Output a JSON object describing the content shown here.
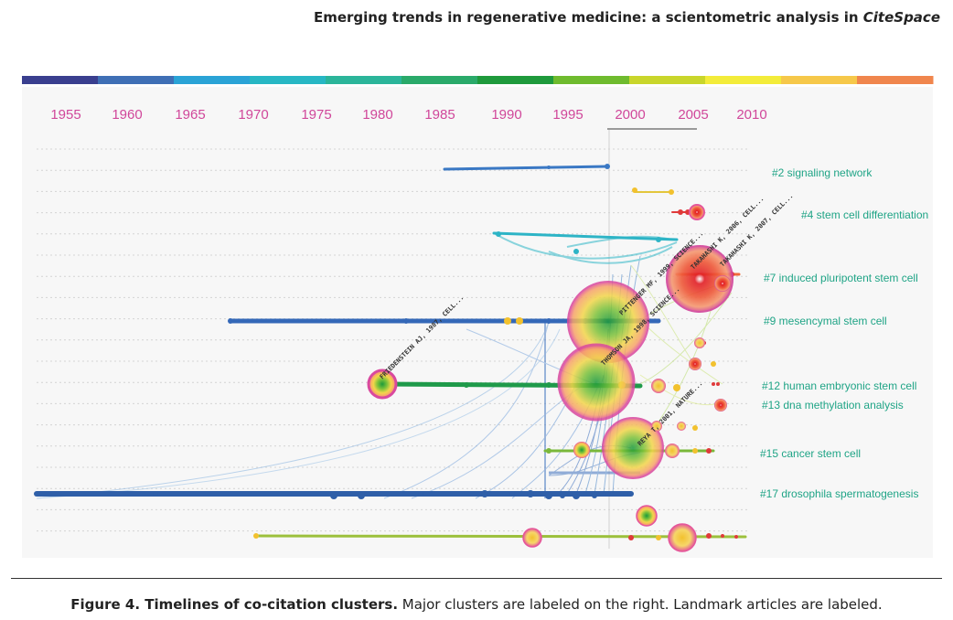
{
  "header": {
    "title_main": "Emerging trends in regenerative medicine: a scientometric analysis in ",
    "title_italic": "CiteSpace"
  },
  "timeline": {
    "years": [
      "1955",
      "1960",
      "1965",
      "1970",
      "1975",
      "1980",
      "1985",
      "1990",
      "1995",
      "2000",
      "2005",
      "2010"
    ]
  },
  "clusters": [
    "#2 signaling network",
    "#4 stem cell differentiation",
    "#7 induced pluripotent stem cell",
    "#9 mesencymal stem cell",
    "#12 human embryonic stem cell",
    "#13 dna methylation analysis",
    "#15 cancer stem cell",
    "#17 drosophila spermatogenesis"
  ],
  "landmark_labels": [
    "FRIEDENSTEIN AJ, 1987, CELL...",
    "THOMSON JA, 1998, SCIENCE...",
    "PITTENGER MF, 1999, SCIENCE...",
    "REYA T, 2001, NATURE...",
    "TAKAHASHI K, 2006, CELL...",
    "TAKAHASHI K, 2007, CELL..."
  ],
  "caption": {
    "bold": "Figure 4. Timelines of co-citation clusters.",
    "text": " Major clusters are labeled on the right. Landmark articles are labeled."
  },
  "colors": {
    "year_labels": "#d0479a",
    "cluster_labels": "#1fa486",
    "spectrum": [
      "#3a3f8f",
      "#3f6fb5",
      "#2aa3d6",
      "#27b7c4",
      "#2bb59a",
      "#2aaa6a",
      "#1f9a3c",
      "#6fbb2e",
      "#c9d62b",
      "#f3ec3a",
      "#f6c84a",
      "#f0864d"
    ]
  }
}
